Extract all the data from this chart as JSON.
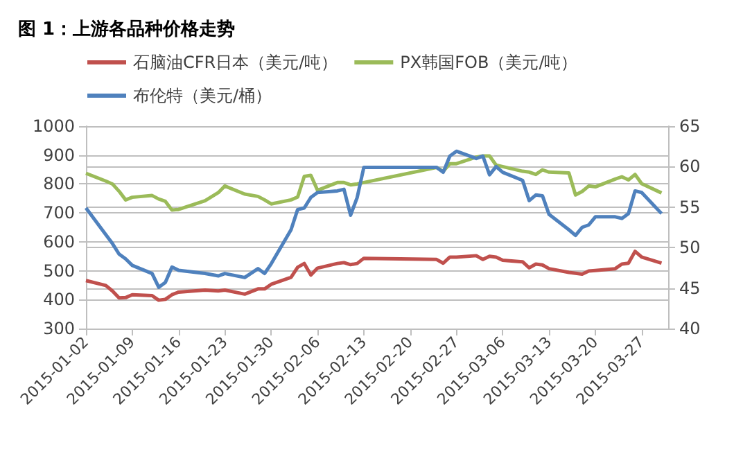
{
  "chart_data": {
    "type": "line",
    "title": "图 1：上游各品种价格走势",
    "x": [
      "2015-01-02",
      "2015-01-05",
      "2015-01-06",
      "2015-01-07",
      "2015-01-08",
      "2015-01-09",
      "2015-01-12",
      "2015-01-13",
      "2015-01-14",
      "2015-01-15",
      "2015-01-16",
      "2015-01-20",
      "2015-01-22",
      "2015-01-23",
      "2015-01-26",
      "2015-01-28",
      "2015-01-29",
      "2015-01-30",
      "2015-02-02",
      "2015-02-03",
      "2015-02-04",
      "2015-02-05",
      "2015-02-06",
      "2015-02-09",
      "2015-02-10",
      "2015-02-11",
      "2015-02-12",
      "2015-02-13",
      "2015-02-24",
      "2015-02-25",
      "2015-02-26",
      "2015-02-27",
      "2015-03-02",
      "2015-03-03",
      "2015-03-04",
      "2015-03-05",
      "2015-03-06",
      "2015-03-09",
      "2015-03-10",
      "2015-03-11",
      "2015-03-12",
      "2015-03-13",
      "2015-03-16",
      "2015-03-17",
      "2015-03-18",
      "2015-03-19",
      "2015-03-20",
      "2015-03-23",
      "2015-03-24",
      "2015-03-25",
      "2015-03-26",
      "2015-03-27",
      "2015-03-30"
    ],
    "series": [
      {
        "name": "石脑油CFR日本（美元/吨）",
        "color": "#c0504d",
        "values": [
          466,
          449,
          430,
          406,
          407,
          417,
          414,
          398,
          401,
          417,
          426,
          433,
          430,
          433,
          419,
          437,
          437,
          453,
          477,
          512,
          525,
          485,
          509,
          525,
          528,
          521,
          525,
          543,
          539,
          526,
          547,
          547,
          552,
          539,
          550,
          547,
          536,
          531,
          510,
          523,
          520,
          507,
          494,
          491,
          488,
          499,
          501,
          507,
          523,
          526,
          567,
          547,
          526
        ]
      },
      {
        "name": "PX韩国FOB（美元/吨）",
        "color": "#9bbb59",
        "values": [
          837,
          810,
          800,
          775,
          745,
          754,
          760,
          748,
          740,
          710,
          712,
          742,
          770,
          793,
          765,
          757,
          745,
          731,
          745,
          755,
          826,
          830,
          778,
          805,
          805,
          797,
          800,
          805,
          857,
          844,
          870,
          870,
          893,
          897,
          897,
          865,
          860,
          844,
          841,
          833,
          849,
          841,
          838,
          762,
          774,
          793,
          790,
          817,
          825,
          814,
          833,
          801,
          769
        ]
      },
      {
        "name": "布伦特（美元/桶）",
        "color": "#4f81bd",
        "axis": "y2",
        "values": [
          54.9,
          51.6,
          50.5,
          49.2,
          48.6,
          47.8,
          46.8,
          45.1,
          45.7,
          47.6,
          47.2,
          46.8,
          46.5,
          46.8,
          46.3,
          47.4,
          46.8,
          48.0,
          52.2,
          54.7,
          54.9,
          56.2,
          56.8,
          57.0,
          57.2,
          54.0,
          56.2,
          59.9,
          59.9,
          59.3,
          61.3,
          61.9,
          61.0,
          61.3,
          59.0,
          60.0,
          59.3,
          58.3,
          55.8,
          56.5,
          56.4,
          54.1,
          52.2,
          51.5,
          52.5,
          52.8,
          53.8,
          53.8,
          53.6,
          54.2,
          57.0,
          56.8,
          54.2
        ]
      }
    ],
    "xlim": [
      "2015-01-02",
      "2015-03-31"
    ],
    "xticks": [
      "2015-01-02",
      "2015-01-09",
      "2015-01-16",
      "2015-01-23",
      "2015-01-30",
      "2015-02-06",
      "2015-02-13",
      "2015-02-20",
      "2015-02-27",
      "2015-03-06",
      "2015-03-13",
      "2015-03-20",
      "2015-03-27"
    ],
    "ylim": [
      300,
      1000
    ],
    "yticks": [
      300,
      400,
      500,
      600,
      700,
      800,
      900,
      1000
    ],
    "y2lim": [
      40,
      65
    ],
    "y2ticks": [
      40,
      45,
      50,
      55,
      60,
      65
    ],
    "grid": "y",
    "legend": "top",
    "marker": "none",
    "line_style": "solid"
  }
}
